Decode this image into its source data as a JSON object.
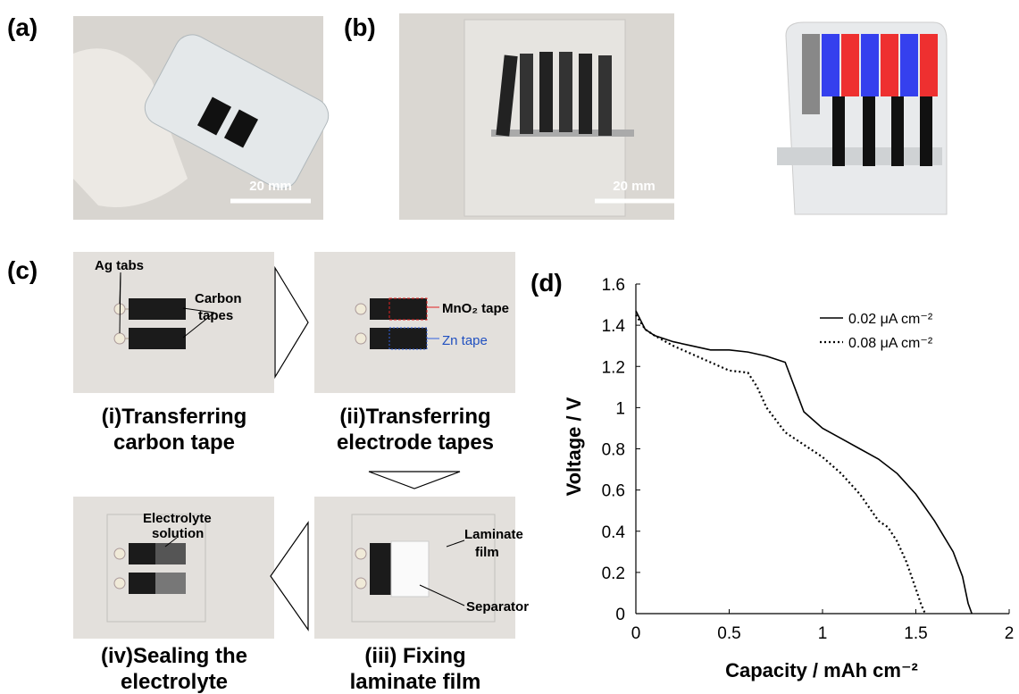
{
  "panels": {
    "a": {
      "label": "(a)",
      "scale_bar": "20 mm"
    },
    "b": {
      "label": "(b)",
      "scale_bar": "20 mm"
    },
    "c": {
      "label": "(c)",
      "steps": [
        {
          "caption": [
            "(i)Transferring",
            "carbon tape"
          ],
          "annotations": [
            "Ag tabs",
            "Carbon",
            "tapes"
          ]
        },
        {
          "caption": [
            "(ii)Transferring",
            "electrode tapes"
          ],
          "annotations": [
            "MnO₂ tape",
            "Zn tape"
          ]
        },
        {
          "caption": [
            "(iii) Fixing",
            "laminate film"
          ],
          "annotations": [
            "Laminate",
            "film",
            "Separator"
          ]
        },
        {
          "caption": [
            "(iv)Sealing the",
            "electrolyte"
          ],
          "annotations": [
            "Electrolyte",
            "solution"
          ]
        }
      ]
    }
  },
  "chart_data": {
    "type": "line",
    "panel_label": "(d)",
    "x_label": "Capacity / mAh cm⁻²",
    "y_label": "Voltage / V",
    "xlim": [
      0,
      2
    ],
    "ylim": [
      0,
      1.6
    ],
    "xticks": [
      0,
      0.5,
      1,
      1.5,
      2
    ],
    "yticks": [
      0,
      0.2,
      0.4,
      0.6,
      0.8,
      1,
      1.2,
      1.4,
      1.6
    ],
    "grid": false,
    "legend": "upper right",
    "series": [
      {
        "name": "0.02 μA cm⁻²",
        "color": "#000000",
        "style": "solid",
        "x": [
          0,
          0.05,
          0.1,
          0.2,
          0.3,
          0.4,
          0.5,
          0.6,
          0.7,
          0.8,
          0.85,
          0.9,
          1.0,
          1.1,
          1.2,
          1.3,
          1.4,
          1.5,
          1.6,
          1.7,
          1.75,
          1.78,
          1.8
        ],
        "values": [
          1.47,
          1.38,
          1.35,
          1.32,
          1.3,
          1.28,
          1.28,
          1.27,
          1.25,
          1.22,
          1.1,
          0.98,
          0.9,
          0.85,
          0.8,
          0.75,
          0.68,
          0.58,
          0.45,
          0.3,
          0.18,
          0.05,
          0
        ]
      },
      {
        "name": "0.08 μA cm⁻²",
        "color": "#000000",
        "style": "dotted",
        "x": [
          0,
          0.05,
          0.1,
          0.2,
          0.3,
          0.4,
          0.5,
          0.6,
          0.65,
          0.7,
          0.8,
          0.9,
          1.0,
          1.1,
          1.2,
          1.3,
          1.35,
          1.4,
          1.45,
          1.5,
          1.53,
          1.55
        ],
        "values": [
          1.45,
          1.38,
          1.35,
          1.3,
          1.26,
          1.22,
          1.18,
          1.17,
          1.1,
          1.0,
          0.88,
          0.82,
          0.76,
          0.68,
          0.58,
          0.45,
          0.42,
          0.35,
          0.25,
          0.12,
          0.04,
          0
        ]
      }
    ]
  }
}
